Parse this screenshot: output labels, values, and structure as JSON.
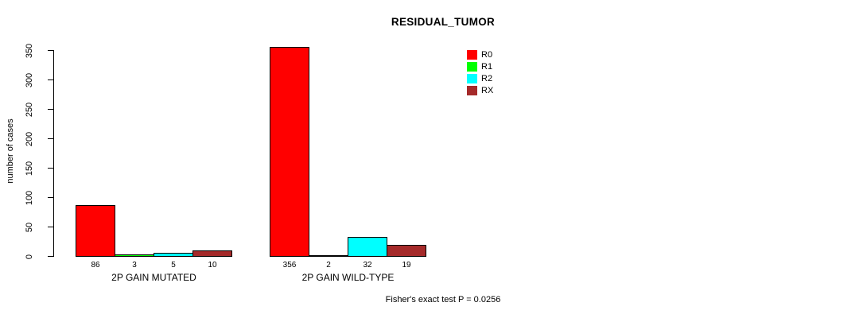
{
  "chart_data": {
    "type": "bar",
    "title": "RESIDUAL_TUMOR",
    "xlabel": "",
    "ylabel": "number of cases",
    "ylim": [
      0,
      350
    ],
    "yticks": [
      0,
      50,
      100,
      150,
      200,
      250,
      300,
      350
    ],
    "grid": false,
    "legend_position": "top-right",
    "categories": [
      "2P GAIN MUTATED",
      "2P GAIN WILD-TYPE"
    ],
    "series": [
      {
        "name": "R0",
        "color": "#ff0000",
        "values": [
          86,
          356
        ]
      },
      {
        "name": "R1",
        "color": "#00ff00",
        "values": [
          3,
          2
        ]
      },
      {
        "name": "R2",
        "color": "#00ffff",
        "values": [
          5,
          32
        ]
      },
      {
        "name": "RX",
        "color": "#a52a2a",
        "values": [
          10,
          19
        ]
      }
    ],
    "bar_value_labels": [
      [
        86,
        3,
        5,
        10
      ],
      [
        356,
        2,
        32,
        19
      ]
    ],
    "bar_border_color": "#000000",
    "annotation": "Fisher's exact test P = 0.0256"
  }
}
